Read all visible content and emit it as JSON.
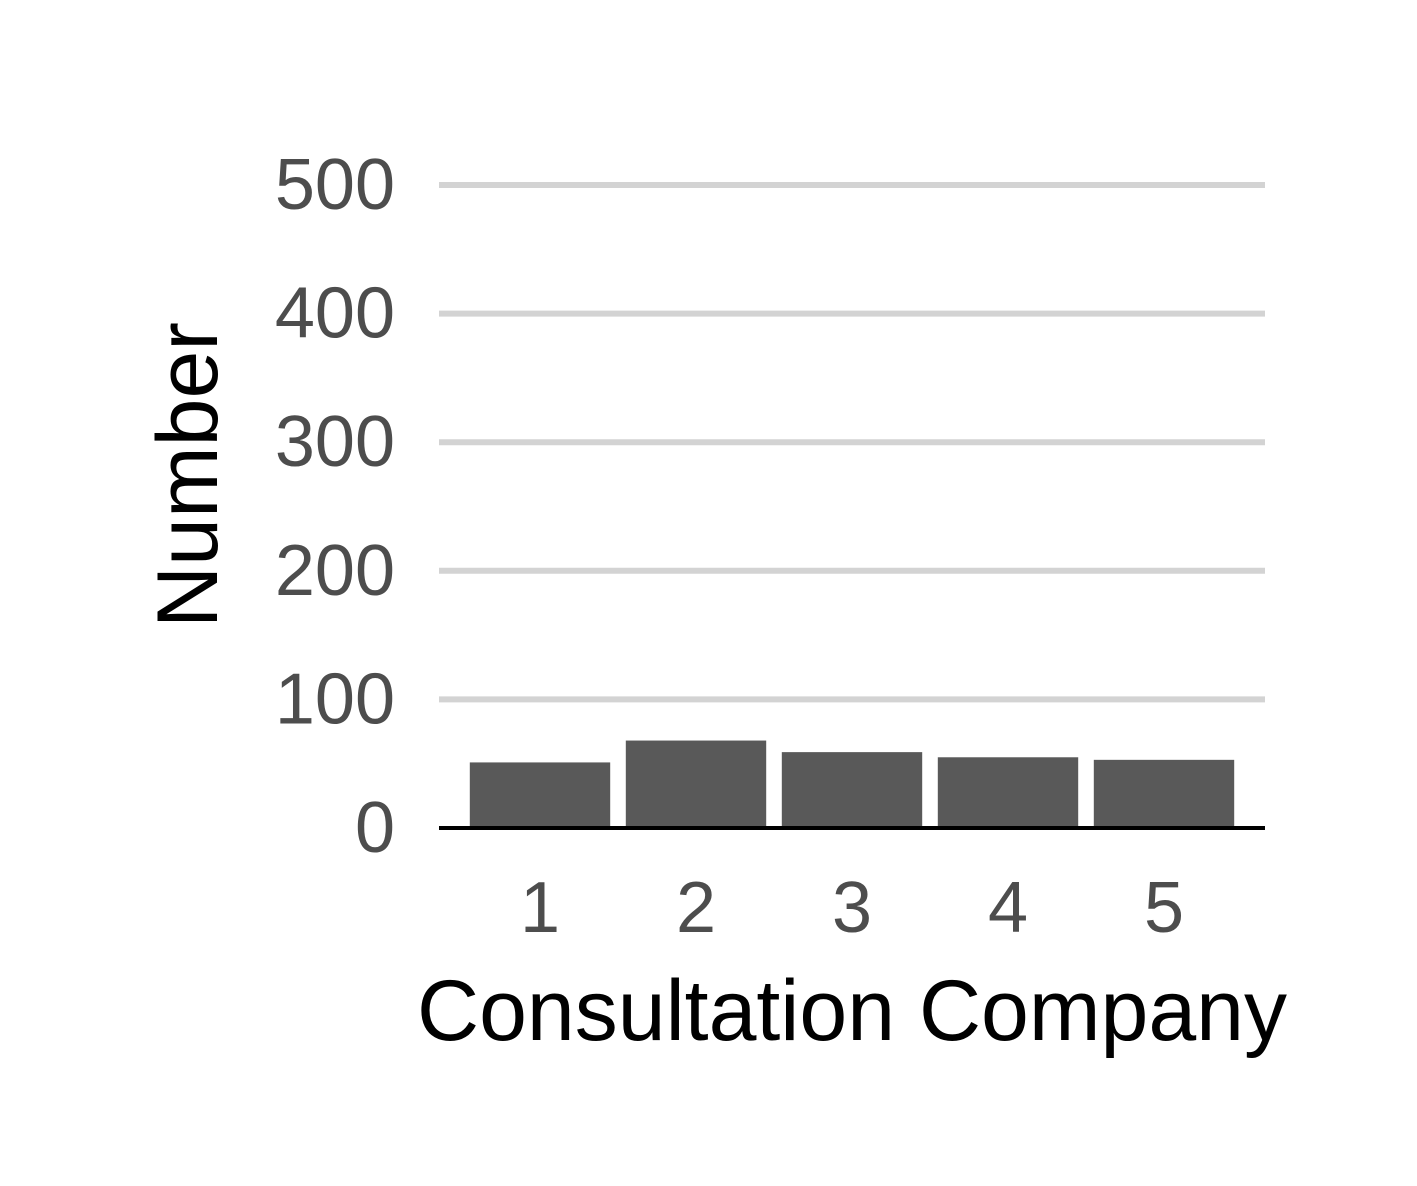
{
  "chart_data": {
    "type": "bar",
    "title": "",
    "xlabel": "Consultation Company",
    "ylabel": "Number",
    "categories": [
      "1",
      "2",
      "3",
      "4",
      "5"
    ],
    "values": [
      51,
      68,
      59,
      55,
      53
    ],
    "ylim": [
      0,
      500
    ],
    "yticks": [
      0,
      100,
      200,
      300,
      400,
      500
    ],
    "grid": "horizontal",
    "colors": {
      "bar": "#595959",
      "grid": "#d3d3d3",
      "axis": "#000000",
      "tick_text": "#4d4d4d",
      "label_text": "#000000"
    }
  }
}
